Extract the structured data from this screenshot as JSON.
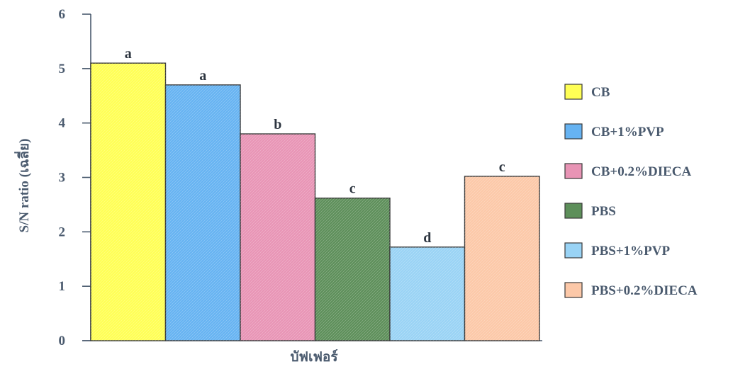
{
  "chart_data": {
    "type": "bar",
    "title": "",
    "xlabel": "บัฟเฟอร์",
    "ylabel": "S/N ratio (เฉลี่ย)",
    "ylim": [
      0,
      6
    ],
    "yticks": [
      0,
      1,
      2,
      3,
      4,
      5,
      6
    ],
    "grid": false,
    "legend_position": "right",
    "categories": [
      "CB",
      "CB+1%PVP",
      "CB+0.2%DIECA",
      "PBS",
      "PBS+1%PVP",
      "PBS+0.2%DIECA"
    ],
    "values": [
      5.1,
      4.7,
      3.8,
      2.62,
      1.72,
      3.02
    ],
    "significance_letters": [
      "a",
      "a",
      "b",
      "c",
      "d",
      "c"
    ],
    "colors": [
      "#ffff55",
      "#66b3f2",
      "#e894b5",
      "#5d8f5a",
      "#99d3f5",
      "#fcc8a8"
    ]
  }
}
